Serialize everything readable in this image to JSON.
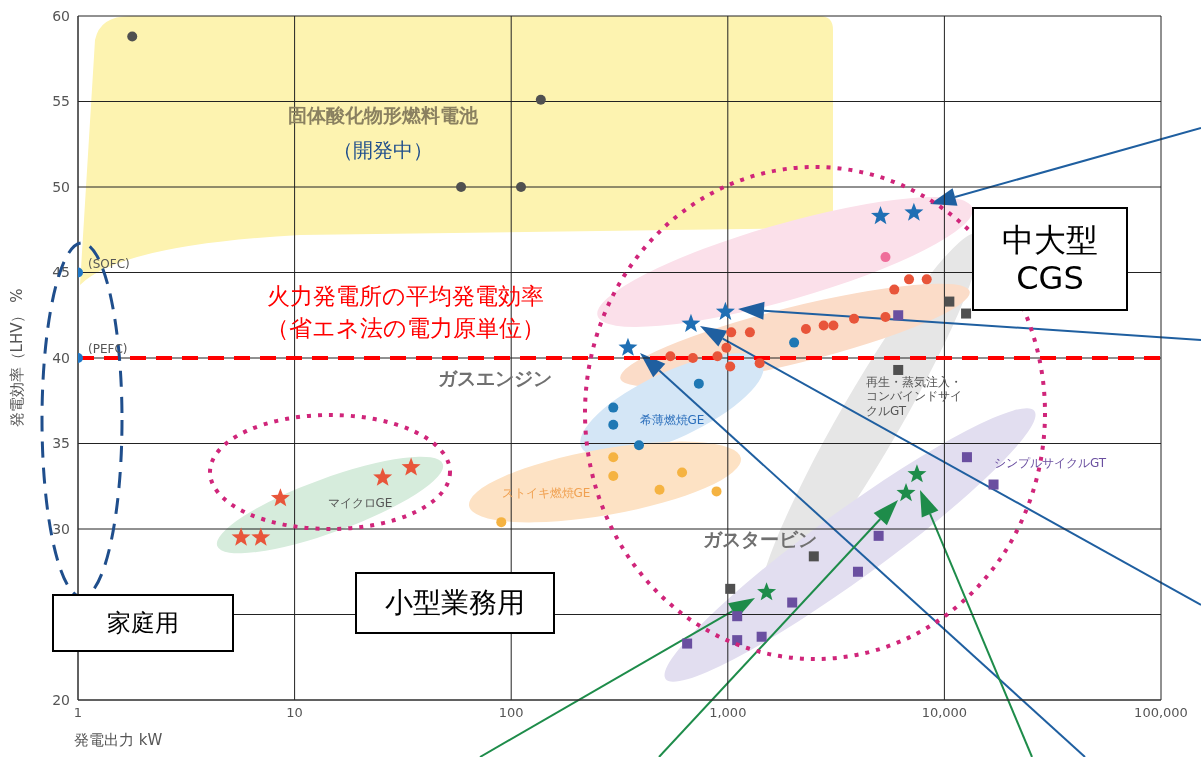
{
  "chart_data": {
    "type": "scatter",
    "xlabel": "発電出力 kW",
    "ylabel": "発電効率（LHV） %",
    "log": "x",
    "grid": true,
    "legend": false,
    "xlim": [
      1,
      100000
    ],
    "xticks": [
      1,
      10,
      100,
      {
        "value": 1000,
        "label": "1,000"
      },
      {
        "value": 10000,
        "label": "10,000"
      },
      {
        "value": 100000,
        "label": "100,000"
      }
    ],
    "ylim": [
      20,
      60
    ],
    "yticks": [
      20,
      {
        "value": 25,
        "label": null
      },
      30,
      35,
      40,
      45,
      50,
      55,
      60
    ],
    "series": [
      {
        "marker": "circle",
        "color": "#505050",
        "x": [
          1.78,
          137,
          58.7,
          111
        ],
        "values": [
          58.8,
          55.1,
          50.0,
          50.0
        ]
      },
      {
        "marker": "circle",
        "color": "#1f78c8",
        "x": [
          1,
          1
        ],
        "values": [
          45,
          40
        ]
      },
      {
        "marker": "star",
        "color": "#e8553a",
        "x": [
          5.66,
          6.98,
          8.6,
          25.5,
          34.5
        ],
        "values": [
          29.5,
          29.5,
          31.8,
          33.0,
          33.6
        ]
      },
      {
        "marker": "circle",
        "color": "#e8553a",
        "x": [
          543,
          690,
          896,
          985,
          1037,
          1265,
          1026,
          1403,
          2295,
          2770,
          3073,
          3828,
          5345,
          5870,
          6866,
          8287
        ],
        "values": [
          40.1,
          40.0,
          40.1,
          40.6,
          41.5,
          41.5,
          39.5,
          39.7,
          41.7,
          41.9,
          41.9,
          42.3,
          42.4,
          44.0,
          44.6,
          44.6
        ]
      },
      {
        "marker": "circle",
        "color": "#ef6e9a",
        "x": [
          5345
        ],
        "values": [
          45.9
        ]
      },
      {
        "marker": "circle",
        "color": "#1f78b4",
        "x": [
          2024,
          735,
          296,
          296,
          389
        ],
        "values": [
          40.9,
          38.5,
          37.1,
          36.1,
          34.9
        ]
      },
      {
        "marker": "circle",
        "color": "#f5b342",
        "x": [
          296,
          296,
          615,
          484,
          887,
          90
        ],
        "values": [
          34.2,
          33.1,
          33.3,
          32.3,
          32.2,
          30.4
        ]
      },
      {
        "marker": "star",
        "color": "#1f6fb4",
        "x": [
          346,
          676,
          975,
          5070,
          7230
        ],
        "values": [
          40.6,
          42.0,
          42.7,
          48.3,
          48.5
        ]
      },
      {
        "marker": "square",
        "color": "#505050",
        "x": [
          1026,
          2495,
          6120,
          10540,
          12590
        ],
        "values": [
          26.5,
          28.4,
          39.3,
          43.3,
          42.6
        ]
      },
      {
        "marker": "square",
        "color": "#6a4fa0",
        "x": [
          649,
          1105,
          1433,
          1105,
          1983,
          3990,
          4970,
          12710,
          16860,
          6120
        ],
        "values": [
          23.3,
          23.5,
          23.7,
          24.9,
          25.7,
          27.5,
          29.6,
          34.2,
          32.6,
          42.5
        ]
      },
      {
        "marker": "star",
        "color": "#1e8c4a",
        "x": [
          1510,
          6650,
          7470
        ],
        "values": [
          26.3,
          32.1,
          33.2
        ]
      }
    ],
    "ref_lines": [
      {
        "axis": "y",
        "value": 40,
        "label": "火力発電所の平均発電効率（省エネ法の電力原単位）",
        "color": "#ff0000",
        "line_style": "dashed"
      }
    ],
    "annotations": [
      "固体酸化物形燃料電池",
      "（開発中）",
      {
        "text": "(SOFC)",
        "x": 1,
        "y": 45
      },
      {
        "text": "(PEFC)",
        "x": 1,
        "y": 40
      },
      "ガスエンジン",
      "希薄燃焼GE",
      "ストイキ燃焼GE",
      "マイクロGE",
      "再生・蒸気注入・コンバインドサイクルGT",
      "シンプルサイクルGT",
      "ガスタービン",
      "中大型\nCGS",
      "小型業務用",
      "家庭用"
    ]
  }
}
